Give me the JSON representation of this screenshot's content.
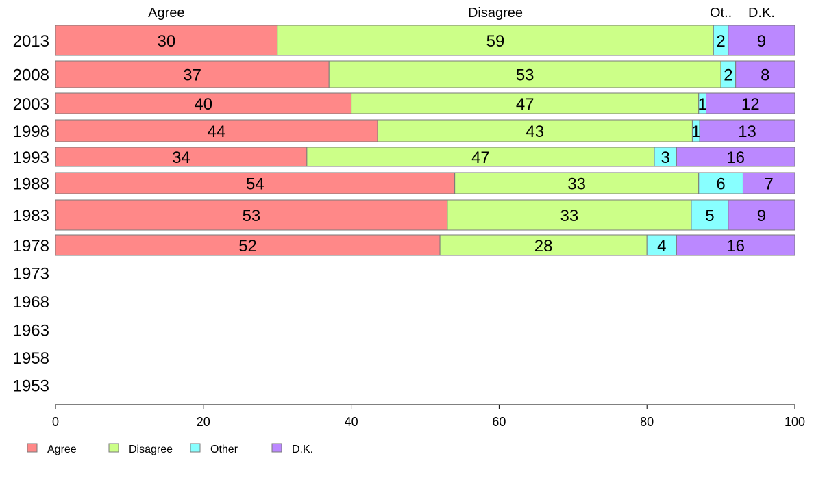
{
  "chart_data": {
    "type": "bar",
    "orientation": "horizontal",
    "stacked": true,
    "categories": [
      "2013",
      "2008",
      "2003",
      "1998",
      "1993",
      "1988",
      "1983",
      "1978",
      "1973",
      "1968",
      "1963",
      "1958",
      "1953"
    ],
    "series": [
      {
        "name": "Agree",
        "color": "#ff8888",
        "values": [
          30,
          37,
          40,
          44,
          34,
          54,
          53,
          52,
          null,
          null,
          null,
          null,
          null
        ]
      },
      {
        "name": "Disagree",
        "color": "#ccff88",
        "values": [
          59,
          53,
          47,
          43,
          47,
          33,
          33,
          28,
          null,
          null,
          null,
          null,
          null
        ]
      },
      {
        "name": "Other",
        "color": "#88ffff",
        "values": [
          2,
          2,
          1,
          1,
          3,
          6,
          5,
          4,
          null,
          null,
          null,
          null,
          null
        ]
      },
      {
        "name": "D.K.",
        "color": "#bb88ff",
        "values": [
          9,
          8,
          12,
          13,
          16,
          7,
          9,
          16,
          null,
          null,
          null,
          null,
          null
        ]
      }
    ],
    "plotted_extent": [
      100.0,
      100.0,
      100.0,
      100.0,
      100.0,
      100.0,
      100.0,
      100.0
    ],
    "column_headers": [
      "Agree",
      "Disagree",
      "Ot..",
      "D.K."
    ],
    "x_ticks": [
      "0",
      "20",
      "40",
      "60",
      "80",
      "100"
    ],
    "xlim": [
      0,
      100
    ],
    "legend": {
      "placement": "bottom-left",
      "labels": [
        "Agree",
        "Disagree",
        "Other",
        "D.K."
      ]
    },
    "grid": false,
    "title": "",
    "xlabel": "",
    "ylabel": ""
  }
}
